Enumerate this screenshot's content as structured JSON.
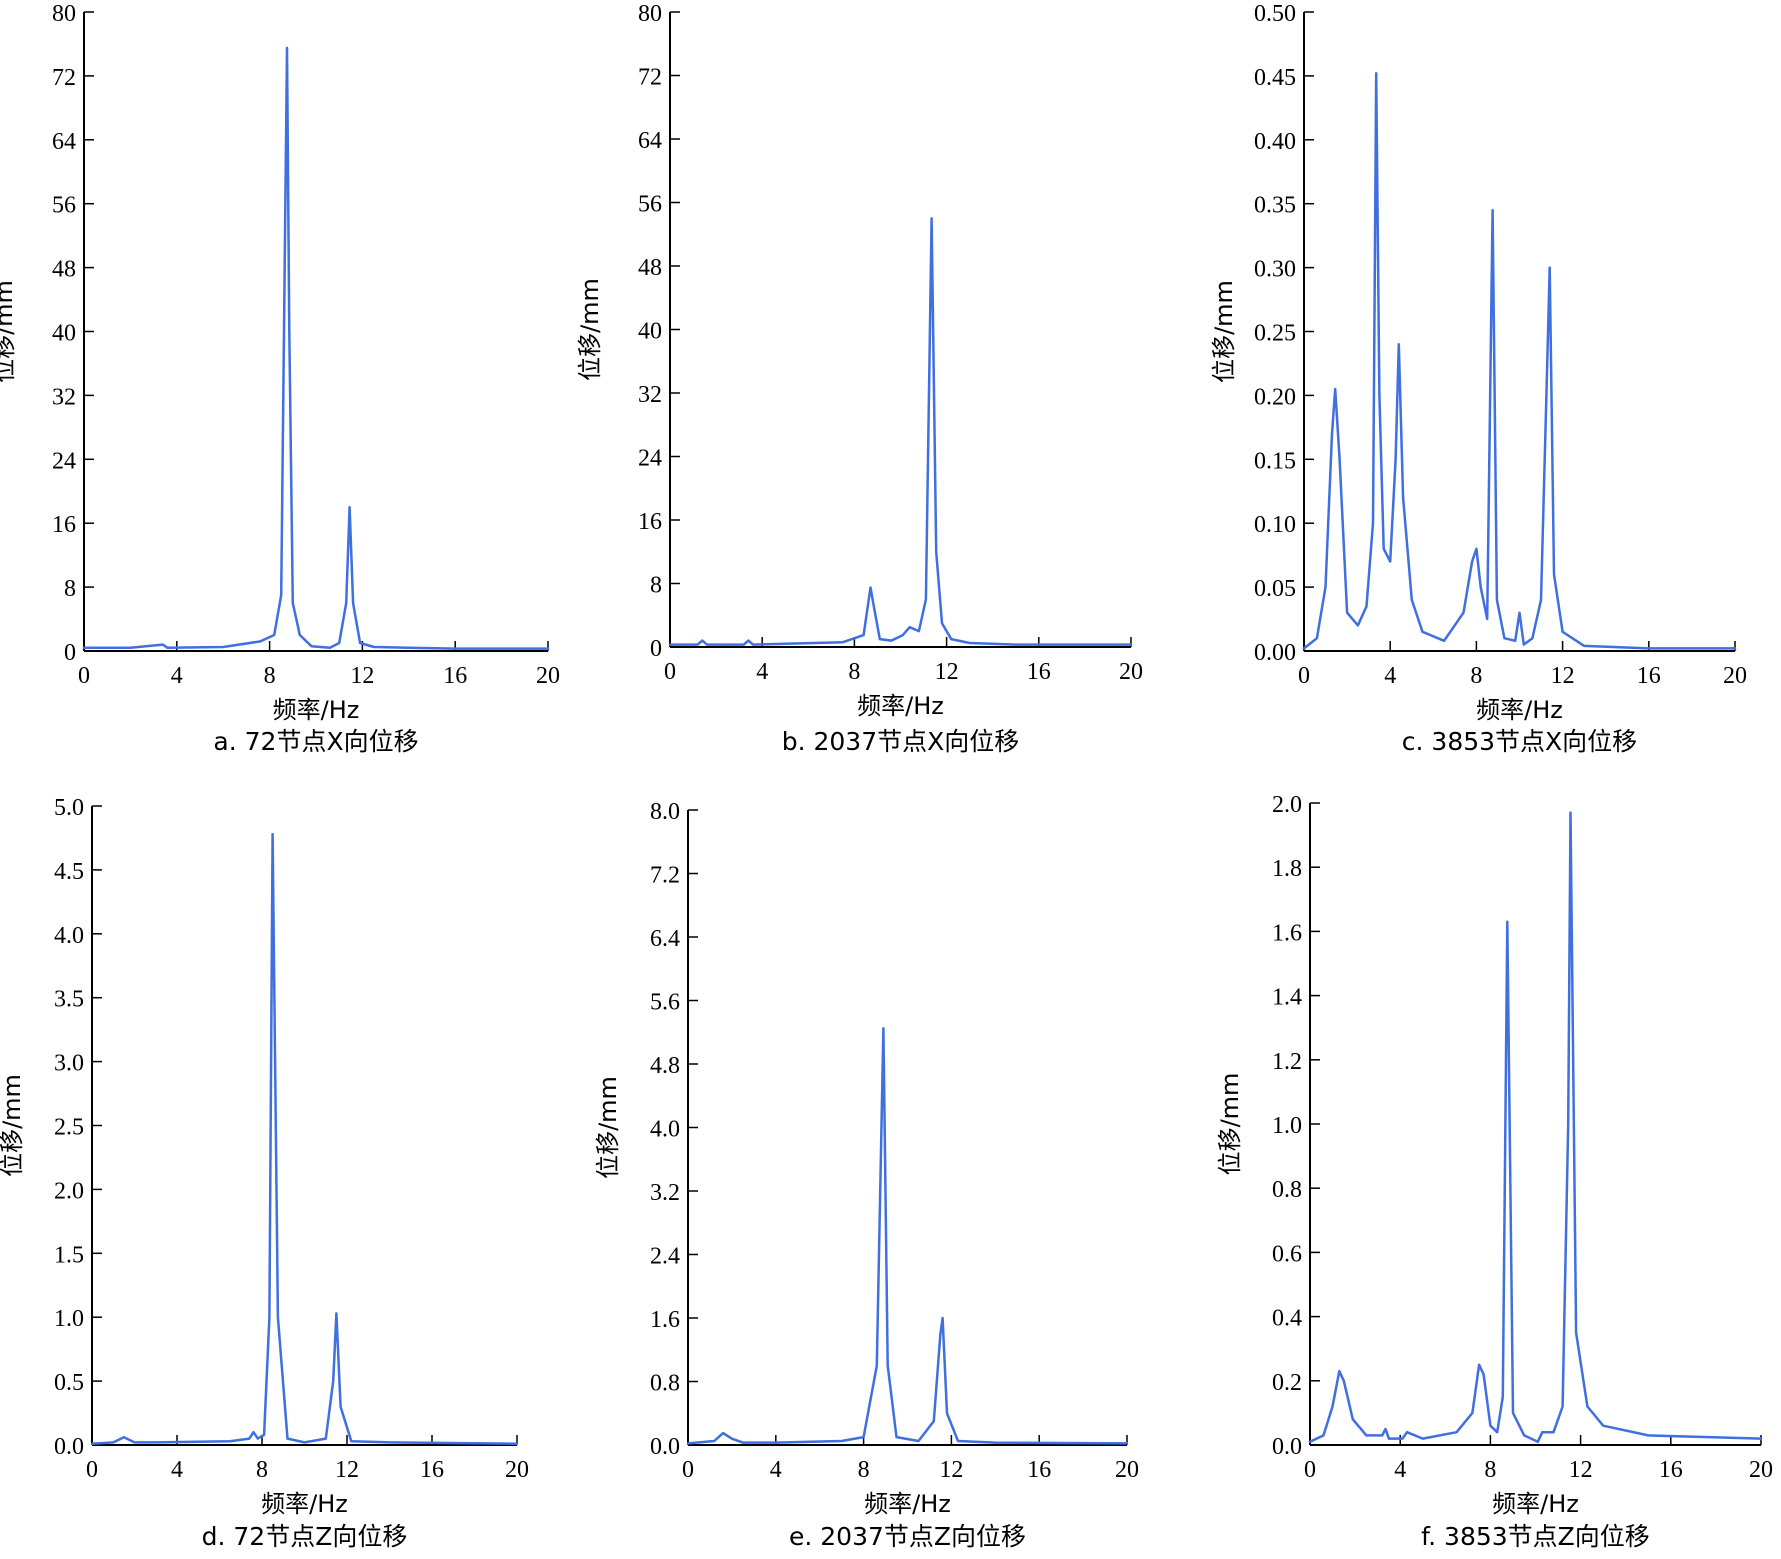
{
  "chart_data": [
    {
      "id": "a",
      "type": "line",
      "caption": "a. 72节点X向位移",
      "xlabel": "频率/Hz",
      "ylabel": "位移/mm",
      "xlim": [
        0,
        20
      ],
      "ylim": [
        0,
        80
      ],
      "xticks": [
        0,
        4,
        8,
        12,
        16,
        20
      ],
      "yticks": [
        0,
        8,
        16,
        24,
        32,
        40,
        48,
        56,
        64,
        72,
        80
      ],
      "ytick_decimals": 0,
      "line_color": "#3f6fe0",
      "series": [
        {
          "x": [
            0,
            2,
            3.4,
            3.6,
            6,
            7.6,
            8.2,
            8.5,
            8.75,
            8.85,
            9.0,
            9.3,
            9.8,
            10.6,
            11.0,
            11.3,
            11.45,
            11.6,
            11.9,
            12.5,
            14,
            16,
            20
          ],
          "y": [
            0.4,
            0.4,
            0.8,
            0.4,
            0.5,
            1.2,
            2.0,
            7.0,
            75.5,
            40.0,
            6.0,
            2.0,
            0.6,
            0.4,
            1.0,
            6.0,
            18.0,
            6.0,
            1.0,
            0.5,
            0.4,
            0.3,
            0.3
          ]
        }
      ]
    },
    {
      "id": "b",
      "type": "line",
      "caption": "b. 2037节点X向位移",
      "xlabel": "频率/Hz",
      "ylabel": "位移/mm",
      "xlim": [
        0,
        20
      ],
      "ylim": [
        0,
        80
      ],
      "xticks": [
        0,
        4,
        8,
        12,
        16,
        20
      ],
      "yticks": [
        0,
        8,
        16,
        24,
        32,
        40,
        48,
        56,
        64,
        72,
        80
      ],
      "ytick_decimals": 0,
      "line_color": "#3f6fe0",
      "series": [
        {
          "x": [
            0,
            1.2,
            1.4,
            1.6,
            3.2,
            3.4,
            3.6,
            7.5,
            8.4,
            8.7,
            8.85,
            9.1,
            9.6,
            10.1,
            10.4,
            10.8,
            11.1,
            11.35,
            11.55,
            11.8,
            12.2,
            13,
            15,
            20
          ],
          "y": [
            0.3,
            0.3,
            0.8,
            0.3,
            0.3,
            0.8,
            0.3,
            0.6,
            1.5,
            7.5,
            5.0,
            1.0,
            0.8,
            1.5,
            2.5,
            2.0,
            6.0,
            54.0,
            12.0,
            3.0,
            1.0,
            0.5,
            0.3,
            0.3
          ]
        }
      ]
    },
    {
      "id": "c",
      "type": "line",
      "caption": "c. 3853节点X向位移",
      "xlabel": "频率/Hz",
      "ylabel": "位移/mm",
      "xlim": [
        0,
        20
      ],
      "ylim": [
        0,
        0.5
      ],
      "xticks": [
        0,
        4,
        8,
        12,
        16,
        20
      ],
      "yticks": [
        0,
        0.05,
        0.1,
        0.15,
        0.2,
        0.25,
        0.3,
        0.35,
        0.4,
        0.45,
        0.5
      ],
      "ytick_decimals": 2,
      "line_color": "#3f6fe0",
      "series": [
        {
          "x": [
            0,
            0.6,
            1.0,
            1.3,
            1.45,
            1.65,
            2.0,
            2.5,
            2.9,
            3.2,
            3.35,
            3.5,
            3.7,
            4.0,
            4.25,
            4.4,
            4.6,
            5.0,
            5.5,
            6.5,
            7.4,
            7.8,
            8.0,
            8.2,
            8.5,
            8.75,
            8.95,
            9.3,
            9.8,
            10.0,
            10.2,
            10.6,
            11.0,
            11.25,
            11.4,
            11.6,
            12.0,
            13,
            16,
            20
          ],
          "y": [
            0.002,
            0.01,
            0.05,
            0.17,
            0.205,
            0.15,
            0.03,
            0.02,
            0.035,
            0.1,
            0.452,
            0.2,
            0.08,
            0.07,
            0.15,
            0.24,
            0.12,
            0.04,
            0.015,
            0.008,
            0.03,
            0.07,
            0.08,
            0.05,
            0.025,
            0.345,
            0.04,
            0.01,
            0.008,
            0.03,
            0.005,
            0.01,
            0.04,
            0.2,
            0.3,
            0.06,
            0.015,
            0.004,
            0.002,
            0.002
          ]
        }
      ]
    },
    {
      "id": "d",
      "type": "line",
      "caption": "d. 72节点Z向位移",
      "xlabel": "频率/Hz",
      "ylabel": "位移/mm",
      "xlim": [
        0,
        20
      ],
      "ylim": [
        0,
        5.0
      ],
      "xticks": [
        0,
        4,
        8,
        12,
        16,
        20
      ],
      "yticks": [
        0,
        0.5,
        1.0,
        1.5,
        2.0,
        2.5,
        3.0,
        3.5,
        4.0,
        4.5,
        5.0
      ],
      "ytick_decimals": 1,
      "line_color": "#3f6fe0",
      "series": [
        {
          "x": [
            0,
            1.0,
            1.5,
            2.0,
            3,
            6.5,
            7.4,
            7.6,
            7.8,
            8.1,
            8.35,
            8.5,
            8.75,
            9.2,
            10,
            11.0,
            11.35,
            11.5,
            11.7,
            12.2,
            14,
            20
          ],
          "y": [
            0.01,
            0.02,
            0.06,
            0.02,
            0.02,
            0.03,
            0.05,
            0.1,
            0.05,
            0.08,
            1.0,
            4.78,
            1.0,
            0.05,
            0.02,
            0.05,
            0.5,
            1.03,
            0.3,
            0.03,
            0.02,
            0.01
          ]
        }
      ]
    },
    {
      "id": "e",
      "type": "line",
      "caption": "e. 2037节点Z向位移",
      "xlabel": "频率/Hz",
      "ylabel": "位移/mm",
      "xlim": [
        0,
        20
      ],
      "ylim": [
        0,
        8.0
      ],
      "xticks": [
        0,
        4,
        8,
        12,
        16,
        20
      ],
      "yticks": [
        0,
        0.8,
        1.6,
        2.4,
        3.2,
        4.0,
        4.8,
        5.6,
        6.4,
        7.2,
        8.0
      ],
      "ytick_decimals": 1,
      "line_color": "#3f6fe0",
      "series": [
        {
          "x": [
            0,
            1.2,
            1.6,
            2.0,
            2.5,
            4,
            7,
            8.0,
            8.6,
            8.9,
            9.1,
            9.5,
            10.5,
            11.2,
            11.5,
            11.6,
            11.8,
            12.3,
            14,
            20
          ],
          "y": [
            0.02,
            0.05,
            0.15,
            0.08,
            0.03,
            0.03,
            0.05,
            0.1,
            1.0,
            5.25,
            1.0,
            0.1,
            0.05,
            0.3,
            1.4,
            1.6,
            0.4,
            0.05,
            0.03,
            0.02
          ]
        }
      ]
    },
    {
      "id": "f",
      "type": "line",
      "caption": "f. 3853节点Z向位移",
      "xlabel": "频率/Hz",
      "ylabel": "位移/mm",
      "xlim": [
        0,
        20
      ],
      "ylim": [
        0,
        2.0
      ],
      "xticks": [
        0,
        4,
        8,
        12,
        16,
        20
      ],
      "yticks": [
        0,
        0.2,
        0.4,
        0.6,
        0.8,
        1.0,
        1.2,
        1.4,
        1.6,
        1.8,
        2.0
      ],
      "ytick_decimals": 1,
      "line_color": "#3f6fe0",
      "series": [
        {
          "x": [
            0,
            0.6,
            1.0,
            1.3,
            1.5,
            1.9,
            2.5,
            3.2,
            3.35,
            3.5,
            4.1,
            4.3,
            5,
            6.5,
            7.2,
            7.5,
            7.7,
            8.0,
            8.3,
            8.55,
            8.75,
            9.0,
            9.5,
            10.1,
            10.3,
            10.8,
            11.2,
            11.45,
            11.55,
            11.8,
            12.3,
            13,
            15,
            20
          ],
          "y": [
            0.01,
            0.03,
            0.12,
            0.23,
            0.2,
            0.08,
            0.03,
            0.03,
            0.05,
            0.02,
            0.02,
            0.04,
            0.02,
            0.04,
            0.1,
            0.25,
            0.22,
            0.06,
            0.04,
            0.15,
            1.63,
            0.1,
            0.03,
            0.01,
            0.04,
            0.04,
            0.12,
            1.0,
            1.97,
            0.35,
            0.12,
            0.06,
            0.03,
            0.02
          ]
        }
      ]
    }
  ]
}
